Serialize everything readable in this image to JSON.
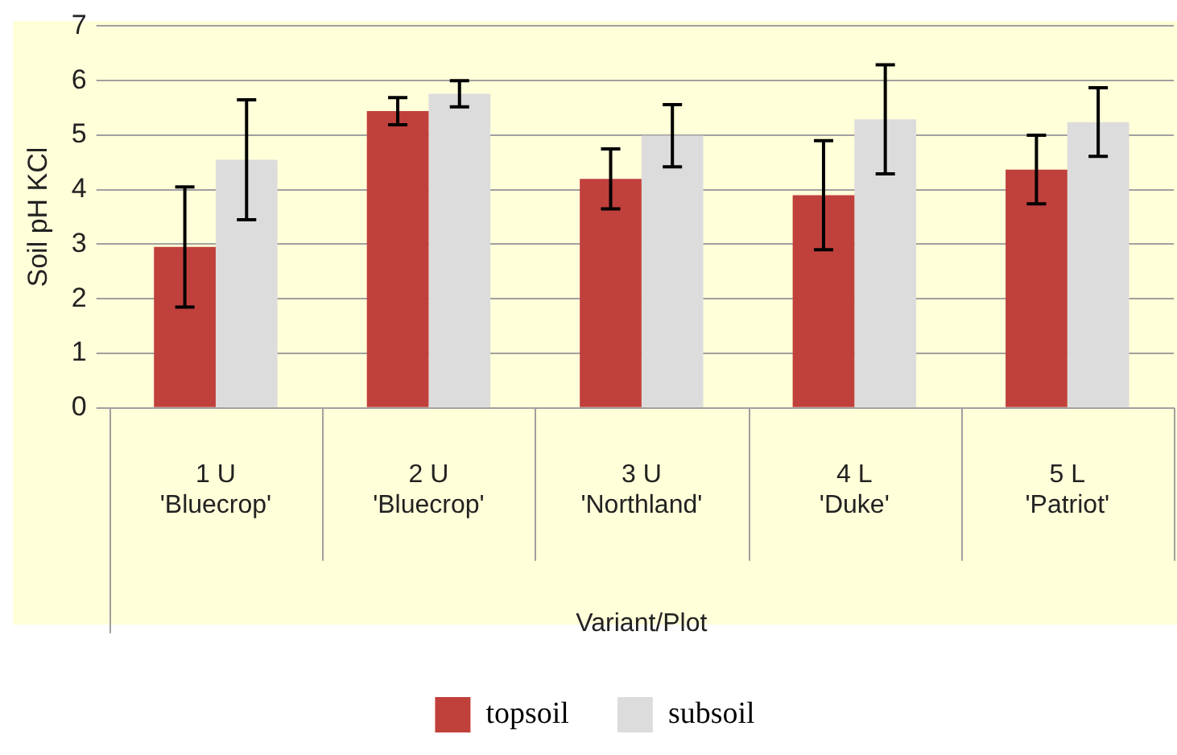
{
  "chart_data": {
    "type": "bar",
    "xlabel": "Variant/Plot",
    "ylabel": "Soil pH KCl",
    "categories": [
      "1 U\n'Bluecrop'",
      "2 U\n'Bluecrop'",
      "3 U\n'Northland'",
      "4 L\n'Duke'",
      "5 L\n'Patriot'"
    ],
    "series": [
      {
        "name": "topsoil",
        "color": "#c0403c",
        "values": [
          2.95,
          5.44,
          4.2,
          3.9,
          4.37
        ],
        "errors": [
          1.1,
          0.25,
          0.55,
          1.0,
          0.63
        ]
      },
      {
        "name": "subsoil",
        "color": "#dcdcdc",
        "values": [
          4.55,
          5.76,
          4.99,
          5.29,
          5.24
        ],
        "errors": [
          1.1,
          0.24,
          0.57,
          1.0,
          0.63
        ]
      }
    ],
    "ylim": [
      0,
      7
    ],
    "yticks": [
      0,
      1,
      2,
      3,
      4,
      5,
      6,
      7
    ],
    "grid": "y",
    "legend": "bottom"
  }
}
